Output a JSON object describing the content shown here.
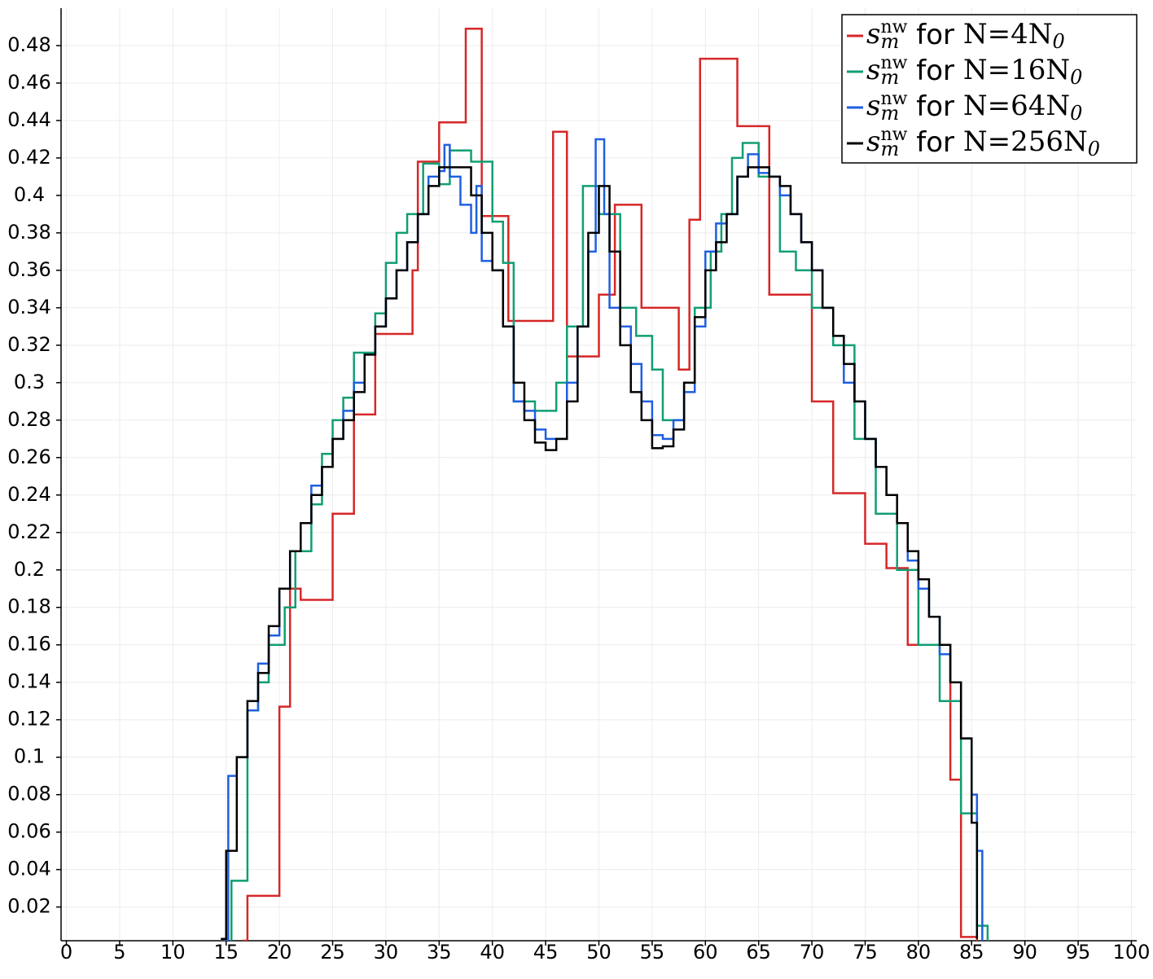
{
  "chart_data": {
    "type": "line",
    "drawstyle": "steps-post",
    "grid": true,
    "legend_position": "upper right",
    "xlim": [
      -0.5,
      100.5
    ],
    "ylim": [
      0.002,
      0.5
    ],
    "xticks": [
      0,
      5,
      10,
      15,
      20,
      25,
      30,
      35,
      40,
      45,
      50,
      55,
      60,
      65,
      70,
      75,
      80,
      85,
      90,
      95,
      100
    ],
    "yticks": [
      0.02,
      0.04,
      0.06,
      0.08,
      0.1,
      0.12,
      0.14,
      0.16,
      0.18,
      0.2,
      0.22,
      0.24,
      0.26,
      0.28,
      0.3,
      0.32,
      0.34,
      0.36,
      0.38,
      0.4,
      0.42,
      0.44,
      0.46,
      0.48
    ],
    "series": [
      {
        "name": "s_m^nw for N=4N_0",
        "color": "#d62728",
        "x": [
          16.5,
          17,
          20,
          21,
          22,
          25,
          27,
          29,
          32.5,
          33,
          35,
          37.5,
          39,
          41.5,
          45.7,
          47,
          50,
          51.5,
          54,
          57.5,
          58.5,
          59.5,
          63,
          66,
          70,
          72,
          75,
          77,
          79,
          83,
          84,
          85.5
        ],
        "values": [
          0.002,
          0.026,
          0.127,
          0.19,
          0.184,
          0.23,
          0.283,
          0.326,
          0.36,
          0.418,
          0.439,
          0.489,
          0.389,
          0.333,
          0.434,
          0.314,
          0.347,
          0.395,
          0.34,
          0.307,
          0.387,
          0.473,
          0.437,
          0.347,
          0.29,
          0.241,
          0.214,
          0.201,
          0.16,
          0.088,
          0.004,
          0.002
        ]
      },
      {
        "name": "s_m^nw for N=16N_0",
        "color": "#119e75",
        "x": [
          15.4,
          15.5,
          17,
          18,
          19,
          20.5,
          21.5,
          23,
          24,
          25,
          26,
          27,
          29,
          30,
          31,
          32,
          33.5,
          35,
          36,
          38,
          40,
          41,
          42,
          44,
          46,
          47,
          48.5,
          50,
          52,
          53.5,
          55,
          56,
          58,
          59,
          60.5,
          61.5,
          62.5,
          63.5,
          65,
          67,
          68.5,
          70,
          72,
          74,
          76,
          78,
          80,
          82,
          84,
          85.5,
          86.5
        ],
        "values": [
          0.002,
          0.034,
          0.125,
          0.14,
          0.16,
          0.18,
          0.21,
          0.235,
          0.262,
          0.28,
          0.292,
          0.316,
          0.337,
          0.364,
          0.38,
          0.39,
          0.417,
          0.406,
          0.424,
          0.418,
          0.386,
          0.364,
          0.29,
          0.285,
          0.3,
          0.33,
          0.405,
          0.39,
          0.34,
          0.325,
          0.307,
          0.28,
          0.3,
          0.34,
          0.37,
          0.39,
          0.42,
          0.428,
          0.41,
          0.37,
          0.36,
          0.34,
          0.32,
          0.27,
          0.23,
          0.2,
          0.16,
          0.13,
          0.07,
          0.01,
          0.002
        ]
      },
      {
        "name": "s_m^nw for N=64N_0",
        "color": "#1f5fe0",
        "x": [
          14.8,
          15.2,
          16,
          17,
          18,
          19,
          20,
          21,
          22,
          23,
          24,
          25,
          26,
          27,
          28,
          29,
          30,
          31,
          32,
          33,
          34,
          35,
          35.5,
          36,
          37,
          38,
          38.5,
          39,
          40,
          41,
          42,
          43,
          44,
          45,
          46,
          47,
          48,
          49,
          49.7,
          50.5,
          51,
          52,
          53,
          54,
          55,
          56,
          57,
          58,
          59,
          60,
          61,
          62,
          63,
          64,
          65,
          66,
          67,
          68,
          69,
          70,
          71,
          72,
          73,
          74,
          75,
          76,
          77,
          78,
          79,
          80,
          81,
          82,
          83,
          84,
          85,
          85.5,
          86
        ],
        "values": [
          0.002,
          0.09,
          0.1,
          0.125,
          0.15,
          0.165,
          0.19,
          0.21,
          0.225,
          0.245,
          0.255,
          0.27,
          0.285,
          0.3,
          0.315,
          0.33,
          0.345,
          0.36,
          0.375,
          0.39,
          0.41,
          0.413,
          0.427,
          0.41,
          0.395,
          0.38,
          0.405,
          0.365,
          0.36,
          0.33,
          0.29,
          0.285,
          0.275,
          0.27,
          0.27,
          0.3,
          0.33,
          0.37,
          0.43,
          0.39,
          0.34,
          0.33,
          0.31,
          0.29,
          0.272,
          0.27,
          0.28,
          0.295,
          0.33,
          0.37,
          0.385,
          0.39,
          0.41,
          0.422,
          0.412,
          0.41,
          0.4,
          0.39,
          0.375,
          0.36,
          0.34,
          0.325,
          0.3,
          0.29,
          0.27,
          0.255,
          0.24,
          0.225,
          0.205,
          0.19,
          0.175,
          0.155,
          0.14,
          0.11,
          0.08,
          0.05,
          0.002
        ]
      },
      {
        "name": "s_m^nw for N=256N_0",
        "color": "#000000",
        "x": [
          14.5,
          15,
          16,
          17,
          18,
          19,
          20,
          21,
          22,
          23,
          24,
          25,
          26,
          27,
          28,
          29,
          30,
          31,
          32,
          33,
          34,
          35,
          36,
          37,
          38,
          39,
          40,
          41,
          42,
          43,
          44,
          45,
          46,
          47,
          48,
          49,
          50,
          51,
          52,
          53,
          54,
          55,
          56,
          57,
          58,
          59,
          60,
          61,
          62,
          63,
          64,
          65,
          66,
          67,
          68,
          69,
          70,
          71,
          72,
          73,
          74,
          75,
          76,
          77,
          78,
          79,
          80,
          81,
          82,
          83,
          84,
          85,
          85.5
        ],
        "values": [
          0.003,
          0.05,
          0.1,
          0.13,
          0.145,
          0.17,
          0.19,
          0.21,
          0.225,
          0.24,
          0.255,
          0.27,
          0.28,
          0.295,
          0.315,
          0.33,
          0.345,
          0.36,
          0.375,
          0.39,
          0.405,
          0.415,
          0.415,
          0.415,
          0.4,
          0.38,
          0.36,
          0.33,
          0.3,
          0.28,
          0.268,
          0.264,
          0.27,
          0.29,
          0.33,
          0.38,
          0.405,
          0.37,
          0.32,
          0.295,
          0.28,
          0.265,
          0.266,
          0.275,
          0.3,
          0.335,
          0.36,
          0.375,
          0.39,
          0.41,
          0.415,
          0.415,
          0.41,
          0.405,
          0.39,
          0.375,
          0.36,
          0.34,
          0.325,
          0.31,
          0.29,
          0.27,
          0.255,
          0.24,
          0.225,
          0.21,
          0.195,
          0.175,
          0.16,
          0.14,
          0.11,
          0.065,
          0.003
        ]
      }
    ]
  }
}
